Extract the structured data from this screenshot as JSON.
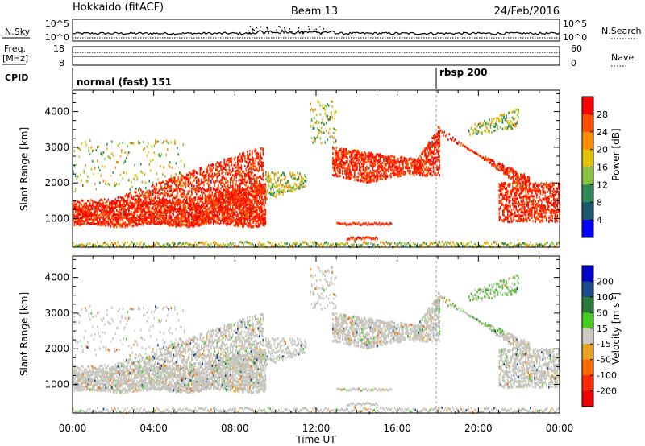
{
  "header": {
    "title": "Hokkaido (fitACF)",
    "beam": "Beam 13",
    "date": "24/Feb/2016"
  },
  "top_panels": {
    "nsky_label": "N.Sky",
    "nsky_ticks": [
      "10^5",
      "10^0"
    ],
    "nsearch_label": "N.Search",
    "nsearch_ticks": [
      "10^5",
      "10^0"
    ],
    "freq_label": "Freq.",
    "freq_unit": "[MHz]",
    "freq_ticks": [
      "18",
      "8"
    ],
    "nave_label": "Nave",
    "nave_ticks": [
      "60",
      "0"
    ],
    "cpid_label": "CPID",
    "cpid_modes": [
      {
        "label": "normal (fast) 151",
        "start_hour": 0
      },
      {
        "label": "rbsp 200",
        "start_hour": 18
      }
    ]
  },
  "chart_data": [
    {
      "type": "heatmap",
      "name": "power",
      "ylabel": "Slant Range [km]",
      "yticks": [
        1000,
        2000,
        3000,
        4000
      ],
      "ylim": [
        200,
        4600
      ],
      "xlim": [
        0,
        24
      ],
      "colorbar_label": "Power [dB]",
      "colorbar_ticks": [
        "28",
        "24",
        "20",
        "16",
        "12",
        "8",
        "4"
      ],
      "colorbar_colors": [
        "#ff0000",
        "#ff5000",
        "#ff8c00",
        "#e0c000",
        "#88c040",
        "#2e8b57",
        "#1a5a70",
        "#0000ff"
      ]
    },
    {
      "type": "heatmap",
      "name": "velocity",
      "ylabel": "Slant Range [km]",
      "yticks": [
        1000,
        2000,
        3000,
        4000
      ],
      "ylim": [
        200,
        4600
      ],
      "xlim": [
        0,
        24
      ],
      "xlabel": "Time UT",
      "xticks": [
        "00:00",
        "04:00",
        "08:00",
        "12:00",
        "16:00",
        "20:00",
        "00:00"
      ],
      "colorbar_label": "Velocity [m s",
      "colorbar_unit_sup": "-1",
      "colorbar_unit_end": "]",
      "colorbar_ticks": [
        "200",
        "100",
        "50",
        "15",
        "-15",
        "-50",
        "-100",
        "-200"
      ],
      "colorbar_colors": [
        "#0000cc",
        "#1a4a8a",
        "#2a7a3a",
        "#44cc22",
        "#c8c8c0",
        "#e8a020",
        "#ff6a00",
        "#ff2a00",
        "#ee0000"
      ]
    }
  ]
}
